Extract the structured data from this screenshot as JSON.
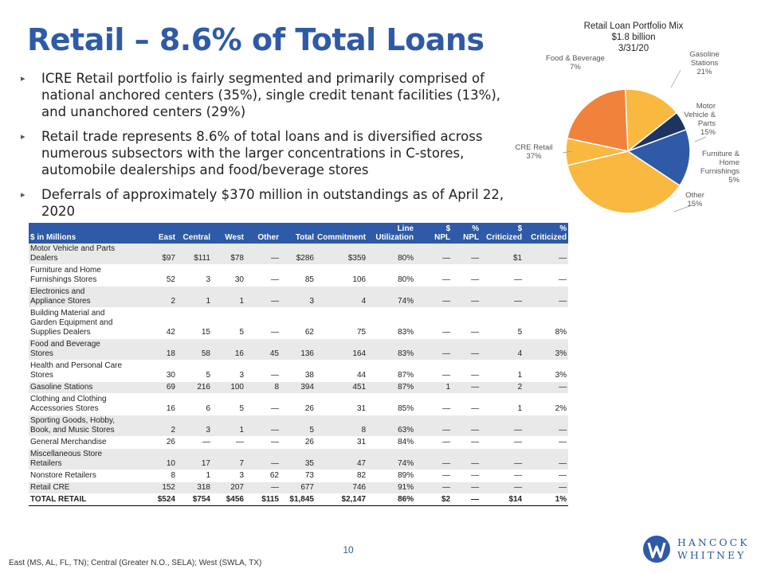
{
  "title": "Retail – 8.6% of Total Loans",
  "bullets": [
    "ICRE Retail portfolio is fairly segmented and primarily comprised of national anchored centers (35%), single credit tenant facilities (13%), and unanchored centers (29%)",
    "Retail trade represents 8.6% of total loans and is diversified across numerous subsectors with the larger concentrations in C-stores, automobile dealerships and food/beverage stores",
    "Deferrals of approximately $370 million in outstandings as of April 22, 2020"
  ],
  "bullet_marker": "▸",
  "chart_data": {
    "type": "pie",
    "title": [
      "Retail Loan Portfolio Mix",
      "$1.8 billion",
      "3/31/20"
    ],
    "slices": [
      {
        "label": "Gasoline Stations",
        "label_lines": [
          "Gasoline",
          "Stations",
          "21%"
        ],
        "value": 21,
        "color": "#f0823c"
      },
      {
        "label": "Motor Vehicle & Parts",
        "label_lines": [
          "Motor",
          "Vehicle &",
          "Parts",
          "15%"
        ],
        "value": 15,
        "color": "#f9b840"
      },
      {
        "label": "Furniture & Home Furnishings",
        "label_lines": [
          "Furniture &",
          "Home",
          "Furnishings",
          "5%"
        ],
        "value": 5,
        "color": "#1c3560"
      },
      {
        "label": "Other",
        "label_lines": [
          "Other",
          "15%"
        ],
        "value": 15,
        "color": "#2e5aa7"
      },
      {
        "label": "CRE Retail",
        "label_lines": [
          "CRE Retail",
          "37%"
        ],
        "value": 37,
        "color": "#f9b840"
      },
      {
        "label": "Food & Beverage",
        "label_lines": [
          "Food & Beverage",
          "7%"
        ],
        "value": 7,
        "color": "#f9b840"
      }
    ]
  },
  "table": {
    "headers": [
      [
        "$ in Millions"
      ],
      [
        "East"
      ],
      [
        "Central"
      ],
      [
        "West"
      ],
      [
        "Other"
      ],
      [
        "Total"
      ],
      [
        "Commitment"
      ],
      [
        "Line",
        "Utilization"
      ],
      [
        "$",
        "NPL"
      ],
      [
        "%",
        "NPL"
      ],
      [
        "$",
        "Criticized"
      ],
      [
        "%",
        "Criticized"
      ]
    ],
    "rows": [
      {
        "name": [
          "Motor Vehicle and Parts",
          "Dealers"
        ],
        "cells": [
          "$97",
          "$111",
          "$78",
          "—",
          "$286",
          "$359",
          "80%",
          "—",
          "—",
          "$1",
          "—"
        ]
      },
      {
        "name": [
          "Furniture and Home",
          "Furnishings Stores"
        ],
        "cells": [
          "52",
          "3",
          "30",
          "—",
          "85",
          "106",
          "80%",
          "—",
          "—",
          "—",
          "—"
        ]
      },
      {
        "name": [
          "Electronics and",
          "Appliance Stores"
        ],
        "cells": [
          "2",
          "1",
          "1",
          "—",
          "3",
          "4",
          "74%",
          "—",
          "—",
          "—",
          "—"
        ]
      },
      {
        "name": [
          "Building Material and",
          "Garden Equipment and",
          "Supplies Dealers"
        ],
        "cells": [
          "42",
          "15",
          "5",
          "—",
          "62",
          "75",
          "83%",
          "—",
          "—",
          "5",
          "8%"
        ]
      },
      {
        "name": [
          "Food and Beverage",
          "Stores"
        ],
        "cells": [
          "18",
          "58",
          "16",
          "45",
          "136",
          "164",
          "83%",
          "—",
          "—",
          "4",
          "3%"
        ]
      },
      {
        "name": [
          "Health and Personal Care",
          "Stores"
        ],
        "cells": [
          "30",
          "5",
          "3",
          "—",
          "38",
          "44",
          "87%",
          "—",
          "—",
          "1",
          "3%"
        ]
      },
      {
        "name": [
          "Gasoline Stations"
        ],
        "cells": [
          "69",
          "216",
          "100",
          "8",
          "394",
          "451",
          "87%",
          "1",
          "—",
          "2",
          "—"
        ]
      },
      {
        "name": [
          "Clothing and Clothing",
          "Accessories Stores"
        ],
        "cells": [
          "16",
          "6",
          "5",
          "—",
          "26",
          "31",
          "85%",
          "—",
          "—",
          "1",
          "2%"
        ]
      },
      {
        "name": [
          "Sporting Goods, Hobby,",
          "Book, and Music Stores"
        ],
        "cells": [
          "2",
          "3",
          "1",
          "—",
          "5",
          "8",
          "63%",
          "—",
          "—",
          "—",
          "—"
        ]
      },
      {
        "name": [
          "General Merchandise"
        ],
        "cells": [
          "26",
          "—",
          "—",
          "—",
          "26",
          "31",
          "84%",
          "—",
          "—",
          "—",
          "—"
        ]
      },
      {
        "name": [
          "Miscellaneous Store",
          "Retailers"
        ],
        "cells": [
          "10",
          "17",
          "7",
          "—",
          "35",
          "47",
          "74%",
          "—",
          "—",
          "—",
          "—"
        ]
      },
      {
        "name": [
          "Nonstore Retailers"
        ],
        "cells": [
          "8",
          "1",
          "3",
          "62",
          "73",
          "82",
          "89%",
          "—",
          "—",
          "—",
          "—"
        ]
      },
      {
        "name": [
          "Retail CRE"
        ],
        "cells": [
          "152",
          "318",
          "207",
          "—",
          "677",
          "746",
          "91%",
          "—",
          "—",
          "—",
          "—"
        ]
      }
    ],
    "total": {
      "name": [
        "TOTAL RETAIL"
      ],
      "cells": [
        "$524",
        "$754",
        "$456",
        "$115",
        "$1,845",
        "$2,147",
        "86%",
        "$2",
        "—",
        "$14",
        "1%"
      ]
    }
  },
  "page_number": "10",
  "footnote": "East (MS, AL, FL, TN); Central (Greater N.O., SELA); West (SWLA, TX)",
  "logo": {
    "line1": "HANCOCK",
    "line2": "WHITNEY",
    "color": "#2e5aa7"
  }
}
